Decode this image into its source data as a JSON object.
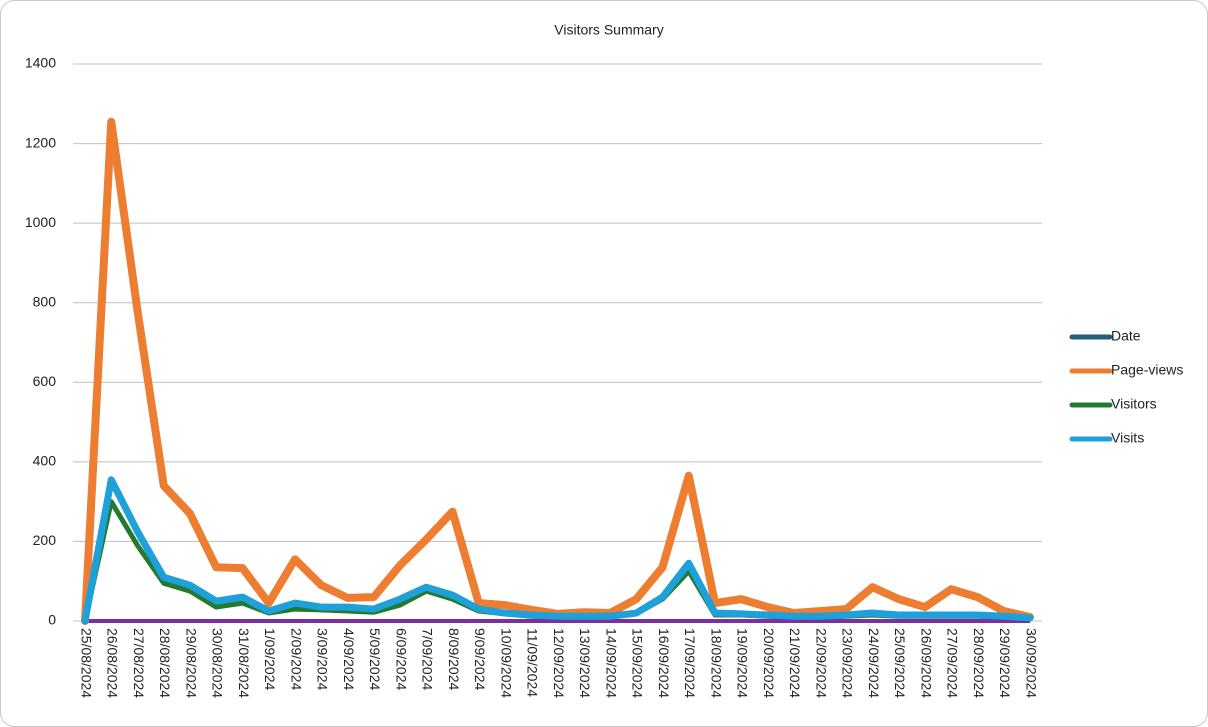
{
  "chart_data": {
    "type": "line",
    "title": "Visitors Summary",
    "categories": [
      "25/08/2024",
      "26/08/2024",
      "27/08/2024",
      "28/08/2024",
      "29/08/2024",
      "30/08/2024",
      "31/08/2024",
      "1/09/2024",
      "2/09/2024",
      "3/09/2024",
      "4/09/2024",
      "5/09/2024",
      "6/09/2024",
      "7/09/2024",
      "8/09/2024",
      "9/09/2024",
      "10/09/2024",
      "11/09/2024",
      "12/09/2024",
      "13/09/2024",
      "14/09/2024",
      "15/09/2024",
      "16/09/2024",
      "17/09/2024",
      "18/09/2024",
      "19/09/2024",
      "20/09/2024",
      "21/09/2024",
      "22/09/2024",
      "23/09/2024",
      "24/09/2024",
      "25/09/2024",
      "26/09/2024",
      "27/09/2024",
      "28/09/2024",
      "29/09/2024",
      "30/09/2024"
    ],
    "series": [
      {
        "name": "Date",
        "color": "#1f5f7a",
        "values": [
          null,
          null,
          null,
          null,
          null,
          null,
          null,
          null,
          null,
          null,
          null,
          null,
          null,
          null,
          null,
          null,
          null,
          null,
          null,
          null,
          null,
          null,
          null,
          null,
          null,
          null,
          null,
          null,
          null,
          null,
          null,
          null,
          null,
          null,
          null,
          null,
          null
        ]
      },
      {
        "name": "Page-views",
        "color": "#ed7d31",
        "values": [
          0,
          1255,
          780,
          340,
          270,
          135,
          133,
          45,
          155,
          90,
          58,
          60,
          140,
          205,
          275,
          45,
          40,
          28,
          18,
          22,
          20,
          55,
          135,
          365,
          45,
          55,
          35,
          20,
          25,
          30,
          85,
          55,
          35,
          80,
          60,
          25,
          10
        ]
      },
      {
        "name": "Visitors",
        "color": "#217a2f",
        "values": [
          0,
          300,
          190,
          95,
          75,
          35,
          45,
          20,
          30,
          28,
          25,
          22,
          40,
          75,
          55,
          25,
          18,
          12,
          10,
          10,
          10,
          18,
          55,
          125,
          15,
          15,
          12,
          10,
          10,
          12,
          15,
          12,
          12,
          12,
          12,
          10,
          5
        ]
      },
      {
        "name": "Visits",
        "color": "#1ea0d8",
        "values": [
          0,
          355,
          225,
          110,
          90,
          50,
          60,
          25,
          45,
          35,
          35,
          30,
          55,
          85,
          65,
          30,
          20,
          15,
          12,
          12,
          12,
          20,
          60,
          145,
          20,
          18,
          15,
          12,
          12,
          15,
          20,
          15,
          15,
          15,
          15,
          12,
          8
        ]
      }
    ],
    "ylim": [
      0,
      1400
    ],
    "yticks": [
      0,
      200,
      400,
      600,
      800,
      1000,
      1200,
      1400
    ],
    "grid": true,
    "legend": "right"
  }
}
